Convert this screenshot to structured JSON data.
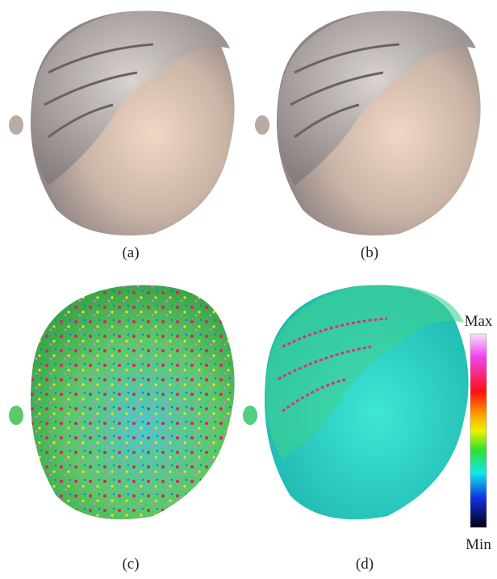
{
  "panels": [
    {
      "label": "(a)"
    },
    {
      "label": "(b)"
    },
    {
      "label": "(c)"
    },
    {
      "label": "(d)"
    }
  ],
  "colorbar": {
    "max": "Max",
    "min": "Min"
  }
}
